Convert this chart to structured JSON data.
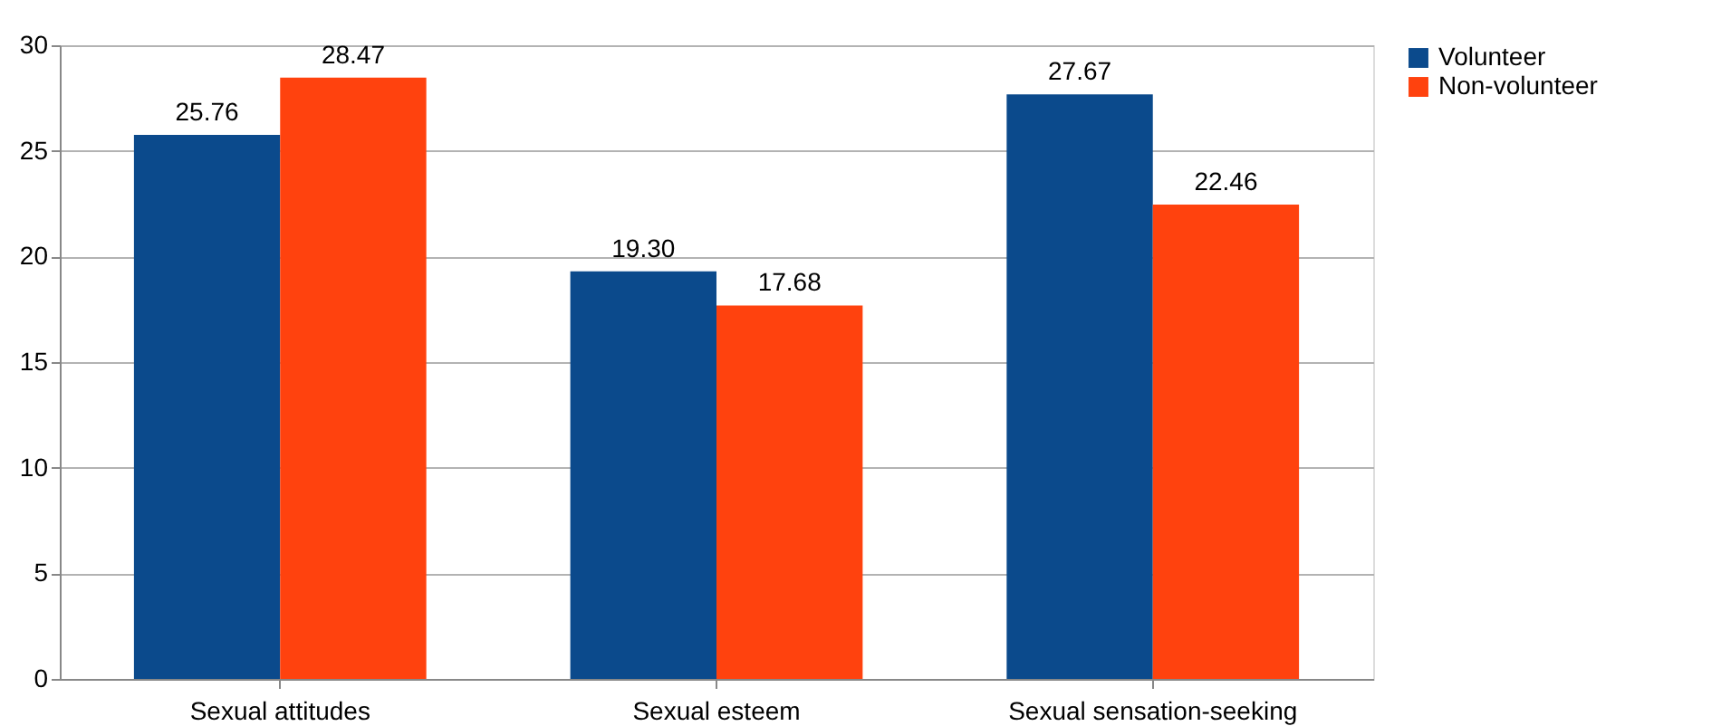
{
  "chart_data": {
    "type": "bar",
    "categories": [
      "Sexual attitudes",
      "Sexual esteem",
      "Sexual sensation-seeking"
    ],
    "series": [
      {
        "name": "Volunteer",
        "color": "#0b4a8c",
        "values": [
          25.76,
          19.3,
          27.67
        ],
        "value_labels": [
          "25.76",
          "19.30",
          "27.67"
        ]
      },
      {
        "name": "Non-volunteer",
        "color": "#ff420e",
        "values": [
          28.47,
          17.68,
          22.46
        ],
        "value_labels": [
          "28.47",
          "17.68",
          "22.46"
        ]
      }
    ],
    "ylim": [
      0,
      30
    ],
    "yticks": [
      0,
      5,
      10,
      15,
      20,
      25,
      30
    ],
    "grid": "y",
    "legend": "right"
  }
}
